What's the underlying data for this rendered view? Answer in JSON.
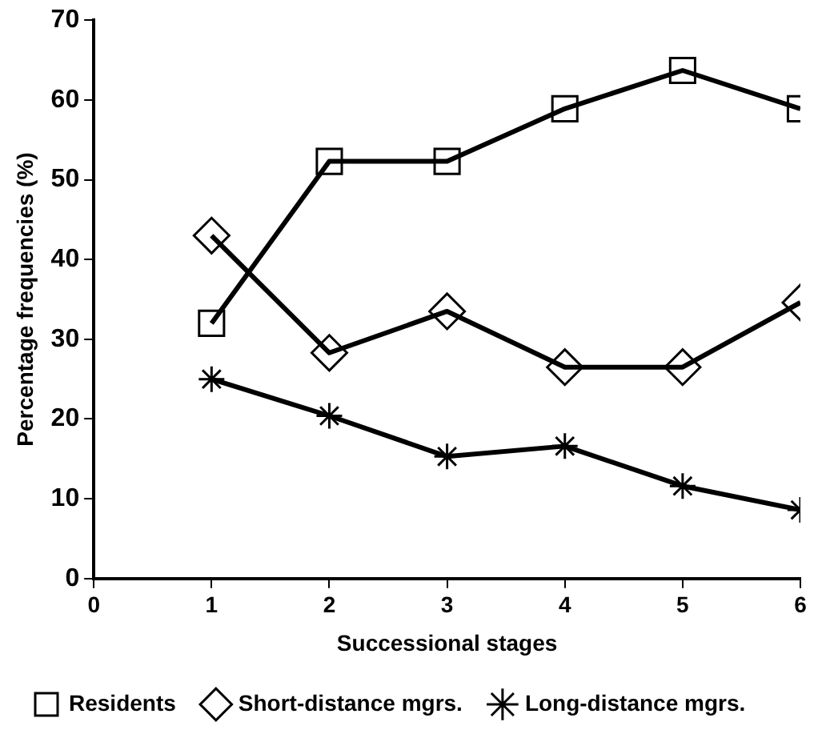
{
  "chart_data": {
    "type": "line",
    "xlabel": "Successional stages",
    "ylabel": "Percentage frequencies (%)",
    "x": [
      1,
      2,
      3,
      4,
      5,
      6
    ],
    "series": [
      {
        "name": "Residents",
        "color": "#000000",
        "marker": "square",
        "values": [
          32,
          52.3,
          52.3,
          58.9,
          63.7,
          58.9
        ]
      },
      {
        "name": "Short-distance mgrs.",
        "color": "#000000",
        "marker": "diamond",
        "values": [
          43,
          28.3,
          33.5,
          26.5,
          26.5,
          34.6
        ]
      },
      {
        "name": "Long-distance mgrs.",
        "color": "#000000",
        "marker": "cross",
        "values": [
          25,
          20.4,
          15.3,
          16.6,
          11.6,
          8.6
        ]
      }
    ],
    "xlim": [
      0,
      6
    ],
    "xticks": [
      0,
      1,
      2,
      3,
      4,
      5,
      6
    ],
    "ylim": [
      0,
      70
    ],
    "yticks": [
      0,
      10,
      20,
      30,
      40,
      50,
      60,
      70
    ],
    "grid": false,
    "legend": "bottom",
    "line_style": "solid"
  }
}
